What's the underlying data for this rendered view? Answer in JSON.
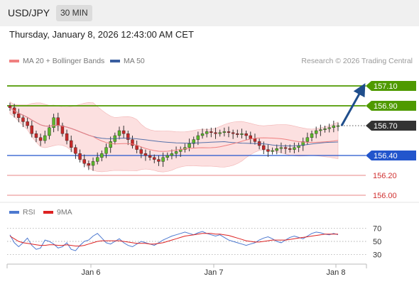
{
  "header": {
    "symbol": "USD/JPY",
    "timeframe": "30 MIN"
  },
  "datetime": "Thursday, January 8, 2026 12:43:00 AM CET",
  "legend": {
    "ma20": {
      "label": "MA 20 + Bollinger Bands",
      "color": "#f08080"
    },
    "ma50": {
      "label": "MA 50",
      "color": "#3a5ea0"
    },
    "rsi": {
      "label": "RSI",
      "color": "#4d79d0"
    },
    "ma9": {
      "label": "9MA",
      "color": "#dd2222"
    }
  },
  "credit": "Research © 2026 Trading Central",
  "colors": {
    "up": "#2f8a00",
    "bull_body": "#5cb82a",
    "bear_body": "#c62828",
    "band": "#fbd6d6"
  },
  "chart_data": [
    {
      "type": "candlestick",
      "x_axis": {
        "tick_labels": [
          "Jan 6",
          "Jan 7",
          "Jan 8"
        ]
      },
      "ylim": [
        155.95,
        157.25
      ],
      "price_levels": [
        {
          "value": "157.10",
          "style": "resistance",
          "color": "#4f9a00"
        },
        {
          "value": "156.90",
          "style": "resistance",
          "color": "#4f9a00"
        },
        {
          "value": "156.70",
          "style": "current",
          "color": "#333333"
        },
        {
          "value": "156.40",
          "style": "support",
          "color": "#2255cc"
        },
        {
          "value": "156.20",
          "style": "support",
          "color": "#e05050"
        },
        {
          "value": "156.00",
          "style": "support",
          "color": "#e05050"
        }
      ],
      "close_series": [
        156.88,
        156.82,
        156.78,
        156.74,
        156.7,
        156.62,
        156.58,
        156.55,
        156.6,
        156.68,
        156.78,
        156.7,
        156.62,
        156.55,
        156.48,
        156.42,
        156.36,
        156.32,
        156.3,
        156.34,
        156.38,
        156.42,
        156.48,
        156.54,
        156.6,
        156.65,
        156.62,
        156.56,
        156.5,
        156.46,
        156.42,
        156.4,
        156.38,
        156.36,
        156.34,
        156.38,
        156.4,
        156.42,
        156.44,
        156.46,
        156.48,
        156.52,
        156.56,
        156.6,
        156.62,
        156.64,
        156.63,
        156.62,
        156.63,
        156.64,
        156.63,
        156.62,
        156.61,
        156.62,
        156.6,
        156.57,
        156.54,
        156.5,
        156.46,
        156.44,
        156.45,
        156.47,
        156.48,
        156.47,
        156.46,
        156.48,
        156.5,
        156.54,
        156.58,
        156.62,
        156.65,
        156.66,
        156.67,
        156.68,
        156.7,
        156.7
      ],
      "forecast_arrow": {
        "from": 156.7,
        "to": 157.1
      }
    },
    {
      "type": "line",
      "name": "RSI",
      "ylim": [
        20,
        80
      ],
      "tick_labels": [
        "70",
        "50",
        "30"
      ],
      "levels": [
        70,
        50,
        30
      ],
      "rsi": [
        60,
        48,
        42,
        48,
        55,
        44,
        38,
        40,
        52,
        50,
        46,
        40,
        42,
        48,
        38,
        36,
        44,
        50,
        52,
        58,
        62,
        55,
        48,
        46,
        50,
        54,
        48,
        44,
        42,
        46,
        50,
        48,
        46,
        44,
        48,
        52,
        55,
        58,
        60,
        62,
        64,
        62,
        60,
        63,
        65,
        62,
        60,
        58,
        60,
        56,
        52,
        50,
        48,
        46,
        44,
        46,
        48,
        52,
        55,
        57,
        54,
        50,
        48,
        52,
        56,
        58,
        56,
        54,
        58,
        62,
        64,
        63,
        61,
        60,
        62,
        60
      ],
      "ma9": [
        58,
        54,
        50,
        48,
        47,
        46,
        45,
        44,
        44,
        45,
        45,
        44,
        44,
        45,
        44,
        43,
        43,
        44,
        46,
        48,
        50,
        51,
        51,
        51,
        51,
        51,
        50,
        49,
        48,
        47,
        47,
        47,
        46,
        46,
        47,
        48,
        50,
        52,
        54,
        56,
        58,
        59,
        60,
        61,
        62,
        62,
        62,
        61,
        61,
        60,
        59,
        57,
        55,
        53,
        51,
        50,
        49,
        49,
        50,
        51,
        52,
        52,
        52,
        52,
        53,
        54,
        55,
        56,
        57,
        58,
        59,
        60,
        61,
        61,
        61,
        61
      ]
    }
  ]
}
